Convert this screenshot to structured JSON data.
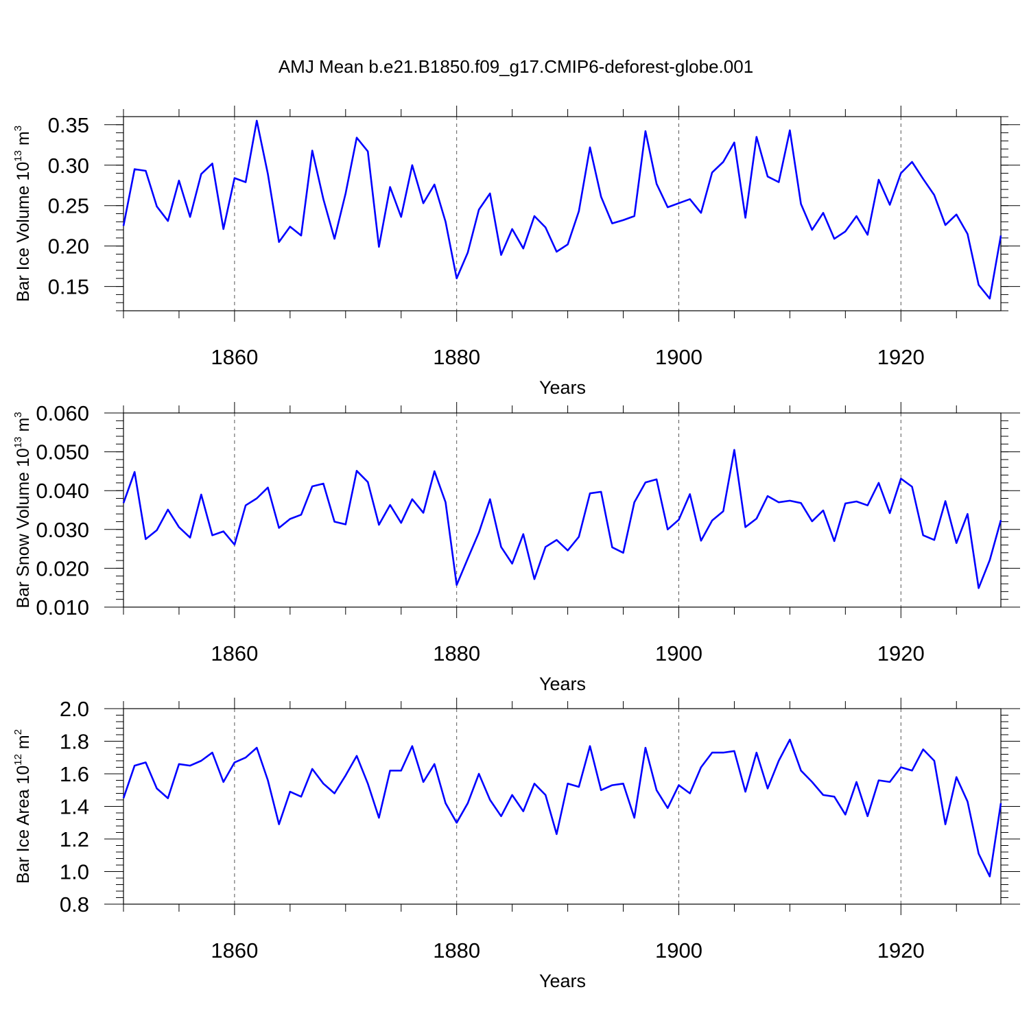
{
  "title": "AMJ Mean b.e21.B1850.f09_g17.CMIP6-deforest-globe.001",
  "line_color": "#0000ff",
  "chart_data": [
    {
      "type": "line",
      "ylabel": "Bar Ice Volume",
      "ylabel_unit_base": "10",
      "ylabel_unit_exp": "13",
      "ylabel_unit_tail": " m",
      "ylabel_unit_tail_exp": "3",
      "xlabel": "Years",
      "xlim": [
        1850,
        1929
      ],
      "ylim": [
        0.12,
        0.36
      ],
      "xticks": [
        1860,
        1880,
        1900,
        1920
      ],
      "xtick_labels": [
        "1860",
        "1880",
        "1900",
        "1920"
      ],
      "yticks": [
        0.15,
        0.2,
        0.25,
        0.3,
        0.35
      ],
      "ytick_labels": [
        "0.15",
        "0.20",
        "0.25",
        "0.30",
        "0.35"
      ],
      "grid_x": true,
      "x": [
        1850,
        1851,
        1852,
        1853,
        1854,
        1855,
        1856,
        1857,
        1858,
        1859,
        1860,
        1861,
        1862,
        1863,
        1864,
        1865,
        1866,
        1867,
        1868,
        1869,
        1870,
        1871,
        1872,
        1873,
        1874,
        1875,
        1876,
        1877,
        1878,
        1879,
        1880,
        1881,
        1882,
        1883,
        1884,
        1885,
        1886,
        1887,
        1888,
        1889,
        1890,
        1891,
        1892,
        1893,
        1894,
        1895,
        1896,
        1897,
        1898,
        1899,
        1900,
        1901,
        1902,
        1903,
        1904,
        1905,
        1906,
        1907,
        1908,
        1909,
        1910,
        1911,
        1912,
        1913,
        1914,
        1915,
        1916,
        1917,
        1918,
        1919,
        1920,
        1921,
        1922,
        1923,
        1924,
        1925,
        1926,
        1927,
        1928,
        1929
      ],
      "series": [
        {
          "name": "Bar Ice Volume",
          "values": [
            0.225,
            0.295,
            0.293,
            0.249,
            0.231,
            0.281,
            0.236,
            0.289,
            0.302,
            0.221,
            0.284,
            0.279,
            0.355,
            0.289,
            0.205,
            0.224,
            0.213,
            0.318,
            0.258,
            0.209,
            0.265,
            0.334,
            0.317,
            0.199,
            0.273,
            0.236,
            0.3,
            0.253,
            0.276,
            0.23,
            0.16,
            0.192,
            0.245,
            0.265,
            0.189,
            0.221,
            0.197,
            0.237,
            0.223,
            0.193,
            0.202,
            0.243,
            0.322,
            0.261,
            0.228,
            0.232,
            0.237,
            0.342,
            0.277,
            0.248,
            0.253,
            0.258,
            0.241,
            0.291,
            0.304,
            0.328,
            0.235,
            0.335,
            0.286,
            0.279,
            0.343,
            0.252,
            0.22,
            0.241,
            0.209,
            0.218,
            0.237,
            0.214,
            0.282,
            0.251,
            0.29,
            0.304,
            0.283,
            0.263,
            0.226,
            0.239,
            0.215,
            0.152,
            0.135,
            0.213
          ]
        }
      ]
    },
    {
      "type": "line",
      "ylabel": "Bar Snow Volume",
      "ylabel_unit_base": "10",
      "ylabel_unit_exp": "13",
      "ylabel_unit_tail": " m",
      "ylabel_unit_tail_exp": "3",
      "xlabel": "Years",
      "xlim": [
        1850,
        1929
      ],
      "ylim": [
        0.01,
        0.06
      ],
      "xticks": [
        1860,
        1880,
        1900,
        1920
      ],
      "xtick_labels": [
        "1860",
        "1880",
        "1900",
        "1920"
      ],
      "yticks": [
        0.01,
        0.02,
        0.03,
        0.04,
        0.05,
        0.06
      ],
      "ytick_labels": [
        "0.010",
        "0.020",
        "0.030",
        "0.040",
        "0.050",
        "0.060"
      ],
      "grid_x": true,
      "x": [
        1850,
        1851,
        1852,
        1853,
        1854,
        1855,
        1856,
        1857,
        1858,
        1859,
        1860,
        1861,
        1862,
        1863,
        1864,
        1865,
        1866,
        1867,
        1868,
        1869,
        1870,
        1871,
        1872,
        1873,
        1874,
        1875,
        1876,
        1877,
        1878,
        1879,
        1880,
        1881,
        1882,
        1883,
        1884,
        1885,
        1886,
        1887,
        1888,
        1889,
        1890,
        1891,
        1892,
        1893,
        1894,
        1895,
        1896,
        1897,
        1898,
        1899,
        1900,
        1901,
        1902,
        1903,
        1904,
        1905,
        1906,
        1907,
        1908,
        1909,
        1910,
        1911,
        1912,
        1913,
        1914,
        1915,
        1916,
        1917,
        1918,
        1919,
        1920,
        1921,
        1922,
        1923,
        1924,
        1925,
        1926,
        1927,
        1928,
        1929
      ],
      "series": [
        {
          "name": "Bar Snow Volume",
          "values": [
            0.0368,
            0.0448,
            0.0275,
            0.0298,
            0.0351,
            0.0306,
            0.0279,
            0.039,
            0.0285,
            0.0295,
            0.0261,
            0.0362,
            0.038,
            0.0408,
            0.0304,
            0.0327,
            0.0338,
            0.0411,
            0.0418,
            0.032,
            0.0313,
            0.0451,
            0.0422,
            0.0312,
            0.0363,
            0.0317,
            0.0378,
            0.0343,
            0.045,
            0.037,
            0.0157,
            0.0225,
            0.0292,
            0.0378,
            0.0255,
            0.0212,
            0.0288,
            0.0172,
            0.0255,
            0.0273,
            0.0246,
            0.0281,
            0.0393,
            0.0397,
            0.0254,
            0.024,
            0.037,
            0.0421,
            0.0429,
            0.03,
            0.0325,
            0.0391,
            0.0271,
            0.0323,
            0.0347,
            0.0505,
            0.0306,
            0.0328,
            0.0386,
            0.037,
            0.0374,
            0.0368,
            0.0321,
            0.0349,
            0.027,
            0.0367,
            0.0372,
            0.0362,
            0.042,
            0.0342,
            0.0431,
            0.041,
            0.0285,
            0.0273,
            0.0373,
            0.0265,
            0.034,
            0.0149,
            0.0221,
            0.0324
          ]
        }
      ]
    },
    {
      "type": "line",
      "ylabel": "Bar Ice Area",
      "ylabel_unit_base": "10",
      "ylabel_unit_exp": "12",
      "ylabel_unit_tail": " m",
      "ylabel_unit_tail_exp": "2",
      "xlabel": "Years",
      "xlim": [
        1850,
        1929
      ],
      "ylim": [
        0.8,
        2.0
      ],
      "xticks": [
        1860,
        1880,
        1900,
        1920
      ],
      "xtick_labels": [
        "1860",
        "1880",
        "1900",
        "1920"
      ],
      "yticks": [
        0.8,
        1.0,
        1.2,
        1.4,
        1.6,
        1.8,
        2.0
      ],
      "ytick_labels": [
        "0.8",
        "1.0",
        "1.2",
        "1.4",
        "1.6",
        "1.8",
        "2.0"
      ],
      "grid_x": true,
      "x": [
        1850,
        1851,
        1852,
        1853,
        1854,
        1855,
        1856,
        1857,
        1858,
        1859,
        1860,
        1861,
        1862,
        1863,
        1864,
        1865,
        1866,
        1867,
        1868,
        1869,
        1870,
        1871,
        1872,
        1873,
        1874,
        1875,
        1876,
        1877,
        1878,
        1879,
        1880,
        1881,
        1882,
        1883,
        1884,
        1885,
        1886,
        1887,
        1888,
        1889,
        1890,
        1891,
        1892,
        1893,
        1894,
        1895,
        1896,
        1897,
        1898,
        1899,
        1900,
        1901,
        1902,
        1903,
        1904,
        1905,
        1906,
        1907,
        1908,
        1909,
        1910,
        1911,
        1912,
        1913,
        1914,
        1915,
        1916,
        1917,
        1918,
        1919,
        1920,
        1921,
        1922,
        1923,
        1924,
        1925,
        1926,
        1927,
        1928,
        1929
      ],
      "series": [
        {
          "name": "Bar Ice Area",
          "values": [
            1.45,
            1.65,
            1.67,
            1.51,
            1.45,
            1.66,
            1.65,
            1.68,
            1.73,
            1.55,
            1.67,
            1.7,
            1.76,
            1.56,
            1.29,
            1.49,
            1.46,
            1.63,
            1.54,
            1.48,
            1.59,
            1.71,
            1.54,
            1.33,
            1.62,
            1.62,
            1.77,
            1.55,
            1.66,
            1.42,
            1.3,
            1.42,
            1.6,
            1.44,
            1.34,
            1.47,
            1.37,
            1.54,
            1.47,
            1.23,
            1.54,
            1.52,
            1.77,
            1.5,
            1.53,
            1.54,
            1.33,
            1.76,
            1.5,
            1.39,
            1.53,
            1.48,
            1.64,
            1.73,
            1.73,
            1.74,
            1.49,
            1.73,
            1.51,
            1.68,
            1.81,
            1.62,
            1.55,
            1.47,
            1.46,
            1.35,
            1.55,
            1.34,
            1.56,
            1.55,
            1.64,
            1.62,
            1.75,
            1.68,
            1.29,
            1.58,
            1.43,
            1.11,
            0.97,
            1.42
          ]
        }
      ]
    }
  ]
}
